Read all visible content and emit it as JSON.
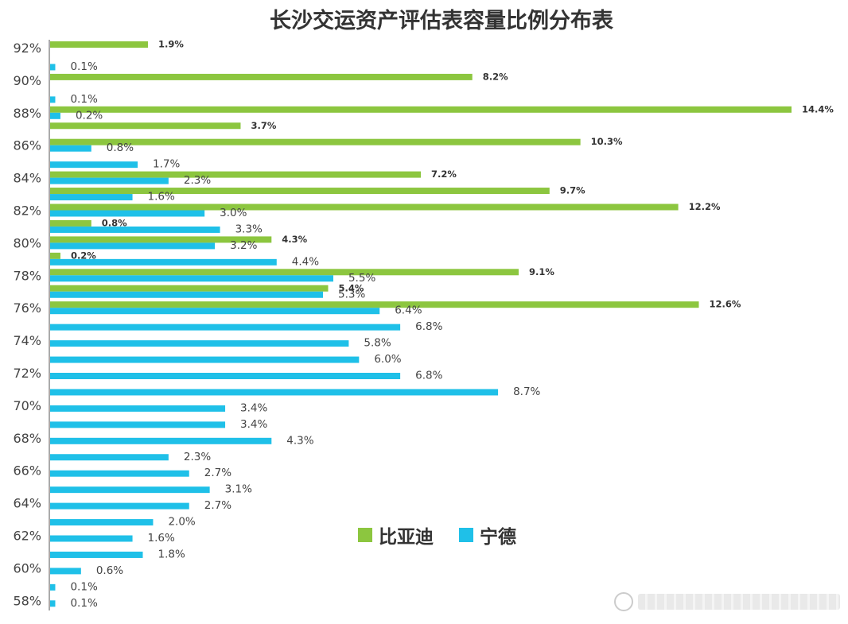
{
  "colors": {
    "byd": "#8CC63F",
    "catl": "#1FC0E8",
    "axis": "#555555"
  },
  "chart_data": {
    "type": "bar",
    "orientation": "horizontal",
    "title": "长沙交运资产评估表容量比例分布表",
    "xlabel": "",
    "ylabel": "",
    "xlim": [
      0,
      14.4
    ],
    "y_ticks": [
      "92%",
      "90%",
      "88%",
      "86%",
      "84%",
      "82%",
      "80%",
      "78%",
      "76%",
      "74%",
      "72%",
      "70%",
      "68%",
      "66%",
      "64%",
      "62%",
      "60%",
      "58%"
    ],
    "legend": {
      "position": "bottom-center"
    },
    "series": [
      {
        "name": "比亚迪",
        "color": "#8CC63F",
        "points": [
          {
            "level": 92,
            "value": 1.9,
            "label": "1.9%"
          },
          {
            "level": 90,
            "value": 8.2,
            "label": "8.2%"
          },
          {
            "level": 88,
            "value": 14.4,
            "label": "14.4%"
          },
          {
            "level": 87,
            "value": 3.7,
            "label": "3.7%"
          },
          {
            "level": 86,
            "value": 10.3,
            "label": "10.3%"
          },
          {
            "level": 84,
            "value": 7.2,
            "label": "7.2%"
          },
          {
            "level": 83,
            "value": 9.7,
            "label": "9.7%"
          },
          {
            "level": 82,
            "value": 12.2,
            "label": "12.2%"
          },
          {
            "level": 81,
            "value": 0.8,
            "label": "0.8%"
          },
          {
            "level": 80,
            "value": 4.3,
            "label": "4.3%"
          },
          {
            "level": 79,
            "value": 0.2,
            "label": "0.2%"
          },
          {
            "level": 78,
            "value": 9.1,
            "label": "9.1%"
          },
          {
            "level": 77,
            "value": 5.4,
            "label": "5.4%"
          },
          {
            "level": 76,
            "value": 12.6,
            "label": "12.6%"
          }
        ]
      },
      {
        "name": "宁德",
        "color": "#1FC0E8",
        "points": [
          {
            "level": 91,
            "value": 0.1,
            "label": "0.1%"
          },
          {
            "level": 89,
            "value": 0.1,
            "label": "0.1%"
          },
          {
            "level": 88,
            "value": 0.2,
            "label": "0.2%"
          },
          {
            "level": 86,
            "value": 0.8,
            "label": "0.8%"
          },
          {
            "level": 85,
            "value": 1.7,
            "label": "1.7%"
          },
          {
            "level": 84,
            "value": 2.3,
            "label": "2.3%"
          },
          {
            "level": 83,
            "value": 1.6,
            "label": "1.6%"
          },
          {
            "level": 82,
            "value": 3.0,
            "label": "3.0%"
          },
          {
            "level": 81,
            "value": 3.3,
            "label": "3.3%"
          },
          {
            "level": 80,
            "value": 3.2,
            "label": "3.2%"
          },
          {
            "level": 79,
            "value": 4.4,
            "label": "4.4%"
          },
          {
            "level": 78,
            "value": 5.5,
            "label": "5.5%"
          },
          {
            "level": 77,
            "value": 5.3,
            "label": "5.3%"
          },
          {
            "level": 76,
            "value": 6.4,
            "label": "6.4%"
          },
          {
            "level": 75,
            "value": 6.8,
            "label": "6.8%"
          },
          {
            "level": 74,
            "value": 5.8,
            "label": "5.8%"
          },
          {
            "level": 73,
            "value": 6.0,
            "label": "6.0%"
          },
          {
            "level": 72,
            "value": 6.8,
            "label": "6.8%"
          },
          {
            "level": 71,
            "value": 8.7,
            "label": "8.7%"
          },
          {
            "level": 70,
            "value": 3.4,
            "label": "3.4%"
          },
          {
            "level": 69,
            "value": 3.4,
            "label": "3.4%"
          },
          {
            "level": 68,
            "value": 4.3,
            "label": "4.3%"
          },
          {
            "level": 67,
            "value": 2.3,
            "label": "2.3%"
          },
          {
            "level": 66,
            "value": 2.7,
            "label": "2.7%"
          },
          {
            "level": 65,
            "value": 3.1,
            "label": "3.1%"
          },
          {
            "level": 64,
            "value": 2.7,
            "label": "2.7%"
          },
          {
            "level": 63,
            "value": 2.0,
            "label": "2.0%"
          },
          {
            "level": 62,
            "value": 1.6,
            "label": "1.6%"
          },
          {
            "level": 61,
            "value": 1.8,
            "label": "1.8%"
          },
          {
            "level": 60,
            "value": 0.6,
            "label": "0.6%"
          },
          {
            "level": 59,
            "value": 0.1,
            "label": "0.1%"
          },
          {
            "level": 58,
            "value": 0.1,
            "label": "0.1%"
          }
        ]
      }
    ]
  }
}
